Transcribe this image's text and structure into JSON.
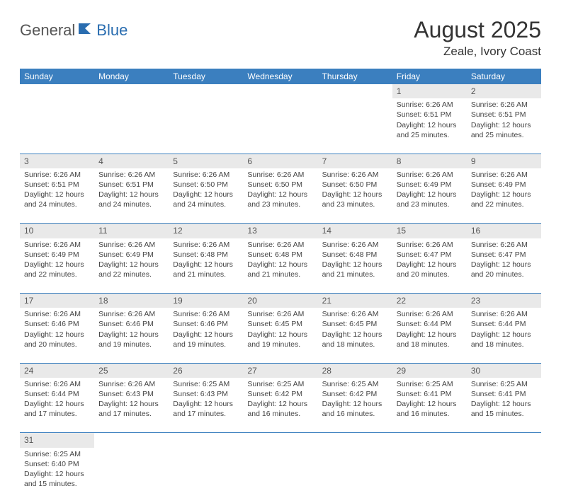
{
  "logo": {
    "general": "General",
    "blue": "Blue"
  },
  "title": "August 2025",
  "subtitle": "Zeale, Ivory Coast",
  "day_headers": [
    "Sunday",
    "Monday",
    "Tuesday",
    "Wednesday",
    "Thursday",
    "Friday",
    "Saturday"
  ],
  "header_bg": "#3b7fbf",
  "header_fg": "#ffffff",
  "daynum_bg": "#e9e9e9",
  "border_color": "#3b7fbf",
  "weeks": [
    [
      null,
      null,
      null,
      null,
      null,
      {
        "n": "1",
        "sr": "Sunrise: 6:26 AM",
        "ss": "Sunset: 6:51 PM",
        "d1": "Daylight: 12 hours",
        "d2": "and 25 minutes."
      },
      {
        "n": "2",
        "sr": "Sunrise: 6:26 AM",
        "ss": "Sunset: 6:51 PM",
        "d1": "Daylight: 12 hours",
        "d2": "and 25 minutes."
      }
    ],
    [
      {
        "n": "3",
        "sr": "Sunrise: 6:26 AM",
        "ss": "Sunset: 6:51 PM",
        "d1": "Daylight: 12 hours",
        "d2": "and 24 minutes."
      },
      {
        "n": "4",
        "sr": "Sunrise: 6:26 AM",
        "ss": "Sunset: 6:51 PM",
        "d1": "Daylight: 12 hours",
        "d2": "and 24 minutes."
      },
      {
        "n": "5",
        "sr": "Sunrise: 6:26 AM",
        "ss": "Sunset: 6:50 PM",
        "d1": "Daylight: 12 hours",
        "d2": "and 24 minutes."
      },
      {
        "n": "6",
        "sr": "Sunrise: 6:26 AM",
        "ss": "Sunset: 6:50 PM",
        "d1": "Daylight: 12 hours",
        "d2": "and 23 minutes."
      },
      {
        "n": "7",
        "sr": "Sunrise: 6:26 AM",
        "ss": "Sunset: 6:50 PM",
        "d1": "Daylight: 12 hours",
        "d2": "and 23 minutes."
      },
      {
        "n": "8",
        "sr": "Sunrise: 6:26 AM",
        "ss": "Sunset: 6:49 PM",
        "d1": "Daylight: 12 hours",
        "d2": "and 23 minutes."
      },
      {
        "n": "9",
        "sr": "Sunrise: 6:26 AM",
        "ss": "Sunset: 6:49 PM",
        "d1": "Daylight: 12 hours",
        "d2": "and 22 minutes."
      }
    ],
    [
      {
        "n": "10",
        "sr": "Sunrise: 6:26 AM",
        "ss": "Sunset: 6:49 PM",
        "d1": "Daylight: 12 hours",
        "d2": "and 22 minutes."
      },
      {
        "n": "11",
        "sr": "Sunrise: 6:26 AM",
        "ss": "Sunset: 6:49 PM",
        "d1": "Daylight: 12 hours",
        "d2": "and 22 minutes."
      },
      {
        "n": "12",
        "sr": "Sunrise: 6:26 AM",
        "ss": "Sunset: 6:48 PM",
        "d1": "Daylight: 12 hours",
        "d2": "and 21 minutes."
      },
      {
        "n": "13",
        "sr": "Sunrise: 6:26 AM",
        "ss": "Sunset: 6:48 PM",
        "d1": "Daylight: 12 hours",
        "d2": "and 21 minutes."
      },
      {
        "n": "14",
        "sr": "Sunrise: 6:26 AM",
        "ss": "Sunset: 6:48 PM",
        "d1": "Daylight: 12 hours",
        "d2": "and 21 minutes."
      },
      {
        "n": "15",
        "sr": "Sunrise: 6:26 AM",
        "ss": "Sunset: 6:47 PM",
        "d1": "Daylight: 12 hours",
        "d2": "and 20 minutes."
      },
      {
        "n": "16",
        "sr": "Sunrise: 6:26 AM",
        "ss": "Sunset: 6:47 PM",
        "d1": "Daylight: 12 hours",
        "d2": "and 20 minutes."
      }
    ],
    [
      {
        "n": "17",
        "sr": "Sunrise: 6:26 AM",
        "ss": "Sunset: 6:46 PM",
        "d1": "Daylight: 12 hours",
        "d2": "and 20 minutes."
      },
      {
        "n": "18",
        "sr": "Sunrise: 6:26 AM",
        "ss": "Sunset: 6:46 PM",
        "d1": "Daylight: 12 hours",
        "d2": "and 19 minutes."
      },
      {
        "n": "19",
        "sr": "Sunrise: 6:26 AM",
        "ss": "Sunset: 6:46 PM",
        "d1": "Daylight: 12 hours",
        "d2": "and 19 minutes."
      },
      {
        "n": "20",
        "sr": "Sunrise: 6:26 AM",
        "ss": "Sunset: 6:45 PM",
        "d1": "Daylight: 12 hours",
        "d2": "and 19 minutes."
      },
      {
        "n": "21",
        "sr": "Sunrise: 6:26 AM",
        "ss": "Sunset: 6:45 PM",
        "d1": "Daylight: 12 hours",
        "d2": "and 18 minutes."
      },
      {
        "n": "22",
        "sr": "Sunrise: 6:26 AM",
        "ss": "Sunset: 6:44 PM",
        "d1": "Daylight: 12 hours",
        "d2": "and 18 minutes."
      },
      {
        "n": "23",
        "sr": "Sunrise: 6:26 AM",
        "ss": "Sunset: 6:44 PM",
        "d1": "Daylight: 12 hours",
        "d2": "and 18 minutes."
      }
    ],
    [
      {
        "n": "24",
        "sr": "Sunrise: 6:26 AM",
        "ss": "Sunset: 6:44 PM",
        "d1": "Daylight: 12 hours",
        "d2": "and 17 minutes."
      },
      {
        "n": "25",
        "sr": "Sunrise: 6:26 AM",
        "ss": "Sunset: 6:43 PM",
        "d1": "Daylight: 12 hours",
        "d2": "and 17 minutes."
      },
      {
        "n": "26",
        "sr": "Sunrise: 6:25 AM",
        "ss": "Sunset: 6:43 PM",
        "d1": "Daylight: 12 hours",
        "d2": "and 17 minutes."
      },
      {
        "n": "27",
        "sr": "Sunrise: 6:25 AM",
        "ss": "Sunset: 6:42 PM",
        "d1": "Daylight: 12 hours",
        "d2": "and 16 minutes."
      },
      {
        "n": "28",
        "sr": "Sunrise: 6:25 AM",
        "ss": "Sunset: 6:42 PM",
        "d1": "Daylight: 12 hours",
        "d2": "and 16 minutes."
      },
      {
        "n": "29",
        "sr": "Sunrise: 6:25 AM",
        "ss": "Sunset: 6:41 PM",
        "d1": "Daylight: 12 hours",
        "d2": "and 16 minutes."
      },
      {
        "n": "30",
        "sr": "Sunrise: 6:25 AM",
        "ss": "Sunset: 6:41 PM",
        "d1": "Daylight: 12 hours",
        "d2": "and 15 minutes."
      }
    ],
    [
      {
        "n": "31",
        "sr": "Sunrise: 6:25 AM",
        "ss": "Sunset: 6:40 PM",
        "d1": "Daylight: 12 hours",
        "d2": "and 15 minutes."
      },
      null,
      null,
      null,
      null,
      null,
      null
    ]
  ]
}
